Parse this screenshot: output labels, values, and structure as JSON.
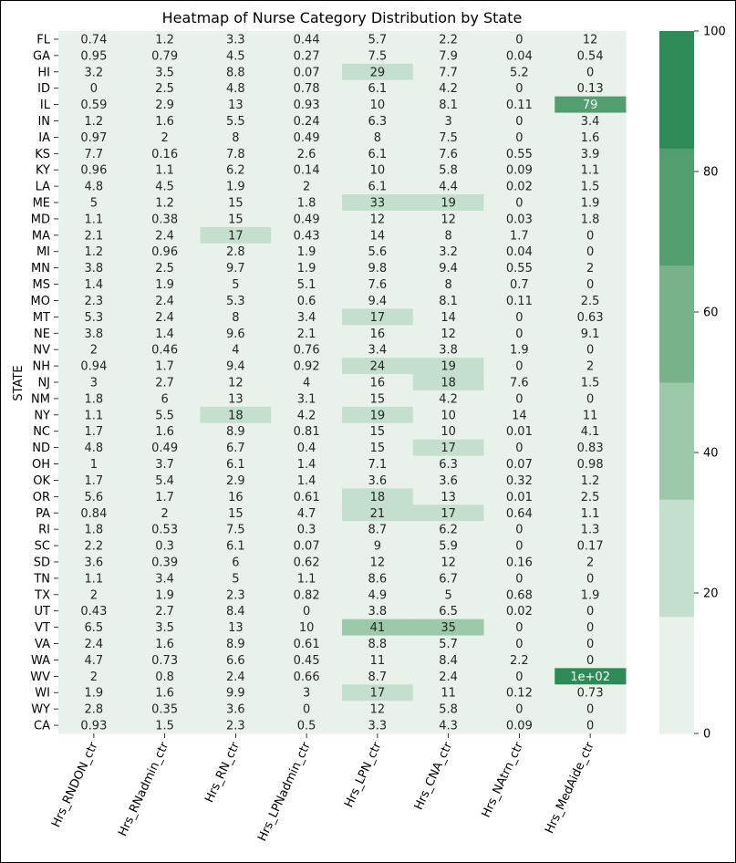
{
  "chart_data": {
    "type": "heatmap",
    "title": "Heatmap of Nurse Category Distribution by State",
    "ylabel": "STATE",
    "xlabel": "",
    "columns": [
      "Hrs_RNDON_ctr",
      "Hrs_RNadmin_ctr",
      "Hrs_RN_ctr",
      "Hrs_LPNadmin_ctr",
      "Hrs_LPN_ctr",
      "Hrs_CNA_ctr",
      "Hrs_NAtrn_ctr",
      "Hrs_MedAide_ctr"
    ],
    "rows": [
      "FL",
      "GA",
      "HI",
      "ID",
      "IL",
      "IN",
      "IA",
      "KS",
      "KY",
      "LA",
      "ME",
      "MD",
      "MA",
      "MI",
      "MN",
      "MS",
      "MO",
      "MT",
      "NE",
      "NV",
      "NH",
      "NJ",
      "NM",
      "NY",
      "NC",
      "ND",
      "OH",
      "OK",
      "OR",
      "PA",
      "RI",
      "SC",
      "SD",
      "TN",
      "TX",
      "UT",
      "VT",
      "VA",
      "WA",
      "WV",
      "WI",
      "WY",
      "CA"
    ],
    "values": [
      [
        0.74,
        1.2,
        3.3,
        0.44,
        5.7,
        2.2,
        0,
        12
      ],
      [
        0.95,
        0.79,
        4.5,
        0.27,
        7.5,
        7.9,
        0.04,
        0.54
      ],
      [
        3.2,
        3.5,
        8.8,
        0.07,
        29,
        7.7,
        5.2,
        0
      ],
      [
        0,
        2.5,
        4.8,
        0.78,
        6.1,
        4.2,
        0,
        0.13
      ],
      [
        0.59,
        2.9,
        13,
        0.93,
        10,
        8.1,
        0.11,
        79
      ],
      [
        1.2,
        1.6,
        5.5,
        0.24,
        6.3,
        3,
        0,
        3.4
      ],
      [
        0.97,
        2,
        8,
        0.49,
        8,
        7.5,
        0,
        1.6
      ],
      [
        7.7,
        0.16,
        7.8,
        2.6,
        6.1,
        7.6,
        0.55,
        3.9
      ],
      [
        0.96,
        1.1,
        6.2,
        0.14,
        10,
        5.8,
        0.09,
        1.1
      ],
      [
        4.8,
        4.5,
        1.9,
        2,
        6.1,
        4.4,
        0.02,
        1.5
      ],
      [
        5,
        1.2,
        15,
        1.8,
        33,
        19,
        0,
        1.9
      ],
      [
        1.1,
        0.38,
        15,
        0.49,
        12,
        12,
        0.03,
        1.8
      ],
      [
        2.1,
        2.4,
        17,
        0.43,
        14,
        8,
        1.7,
        0
      ],
      [
        1.2,
        0.96,
        2.8,
        1.9,
        5.6,
        3.2,
        0.04,
        0
      ],
      [
        3.8,
        2.5,
        9.7,
        1.9,
        9.8,
        9.4,
        0.55,
        2
      ],
      [
        1.4,
        1.9,
        5,
        5.1,
        7.6,
        8,
        0.7,
        0
      ],
      [
        2.3,
        2.4,
        5.3,
        0.6,
        9.4,
        8.1,
        0.11,
        2.5
      ],
      [
        5.3,
        2.4,
        8,
        3.4,
        17,
        14,
        0,
        0.63
      ],
      [
        3.8,
        1.4,
        9.6,
        2.1,
        16,
        12,
        0,
        9.1
      ],
      [
        2,
        0.46,
        4,
        0.76,
        3.4,
        3.8,
        1.9,
        0
      ],
      [
        0.94,
        1.7,
        9.4,
        0.92,
        24,
        19,
        0,
        2
      ],
      [
        3,
        2.7,
        12,
        4,
        16,
        18,
        7.6,
        1.5
      ],
      [
        1.8,
        6,
        13,
        3.1,
        15,
        4.2,
        0,
        0
      ],
      [
        1.1,
        5.5,
        18,
        4.2,
        19,
        10,
        14,
        11
      ],
      [
        1.7,
        1.6,
        8.9,
        0.81,
        15,
        10,
        0.01,
        4.1
      ],
      [
        4.8,
        0.49,
        6.7,
        0.4,
        15,
        17,
        0,
        0.83
      ],
      [
        1,
        3.7,
        6.1,
        1.4,
        7.1,
        6.3,
        0.07,
        0.98
      ],
      [
        1.7,
        5.4,
        2.9,
        1.4,
        3.6,
        3.6,
        0.32,
        1.2
      ],
      [
        5.6,
        1.7,
        16,
        0.61,
        18,
        13,
        0.01,
        2.5
      ],
      [
        0.84,
        2,
        15,
        4.7,
        21,
        17,
        0.64,
        1.1
      ],
      [
        1.8,
        0.53,
        7.5,
        0.3,
        8.7,
        6.2,
        0,
        1.3
      ],
      [
        2.2,
        0.3,
        6.1,
        0.07,
        9,
        5.9,
        0,
        0.17
      ],
      [
        3.6,
        0.39,
        6,
        0.62,
        12,
        12,
        0.16,
        2
      ],
      [
        1.1,
        3.4,
        5,
        1.1,
        8.6,
        6.7,
        0,
        0
      ],
      [
        2,
        1.9,
        2.3,
        0.82,
        4.9,
        5,
        0.68,
        1.9
      ],
      [
        0.43,
        2.7,
        8.4,
        0,
        3.8,
        6.5,
        0.02,
        0
      ],
      [
        6.5,
        3.5,
        13,
        10,
        41,
        35,
        0,
        0
      ],
      [
        2.4,
        1.6,
        8.9,
        0.61,
        8.8,
        5.7,
        0,
        0
      ],
      [
        4.7,
        0.73,
        6.6,
        0.45,
        11,
        8.4,
        2.2,
        0
      ],
      [
        2,
        0.8,
        2.4,
        0.66,
        8.7,
        2.4,
        0,
        100
      ],
      [
        1.9,
        1.6,
        9.9,
        3,
        17,
        11,
        0.12,
        0.73
      ],
      [
        2.8,
        0.35,
        3.6,
        0,
        12,
        5.8,
        0,
        0
      ],
      [
        0.93,
        1.5,
        2.3,
        0.5,
        3.3,
        4.3,
        0.09,
        0
      ]
    ],
    "cell_labels_override": {
      "39-7": "1e+02"
    },
    "colorbar": {
      "range": [
        0,
        100
      ],
      "ticks": [
        "0",
        "20",
        "40",
        "60",
        "80",
        "100"
      ],
      "colors": [
        "#e8f2ea",
        "#c4dfcd",
        "#9bc9aa",
        "#77b28b",
        "#529e6e",
        "#2e8b57"
      ]
    },
    "grid": false
  }
}
